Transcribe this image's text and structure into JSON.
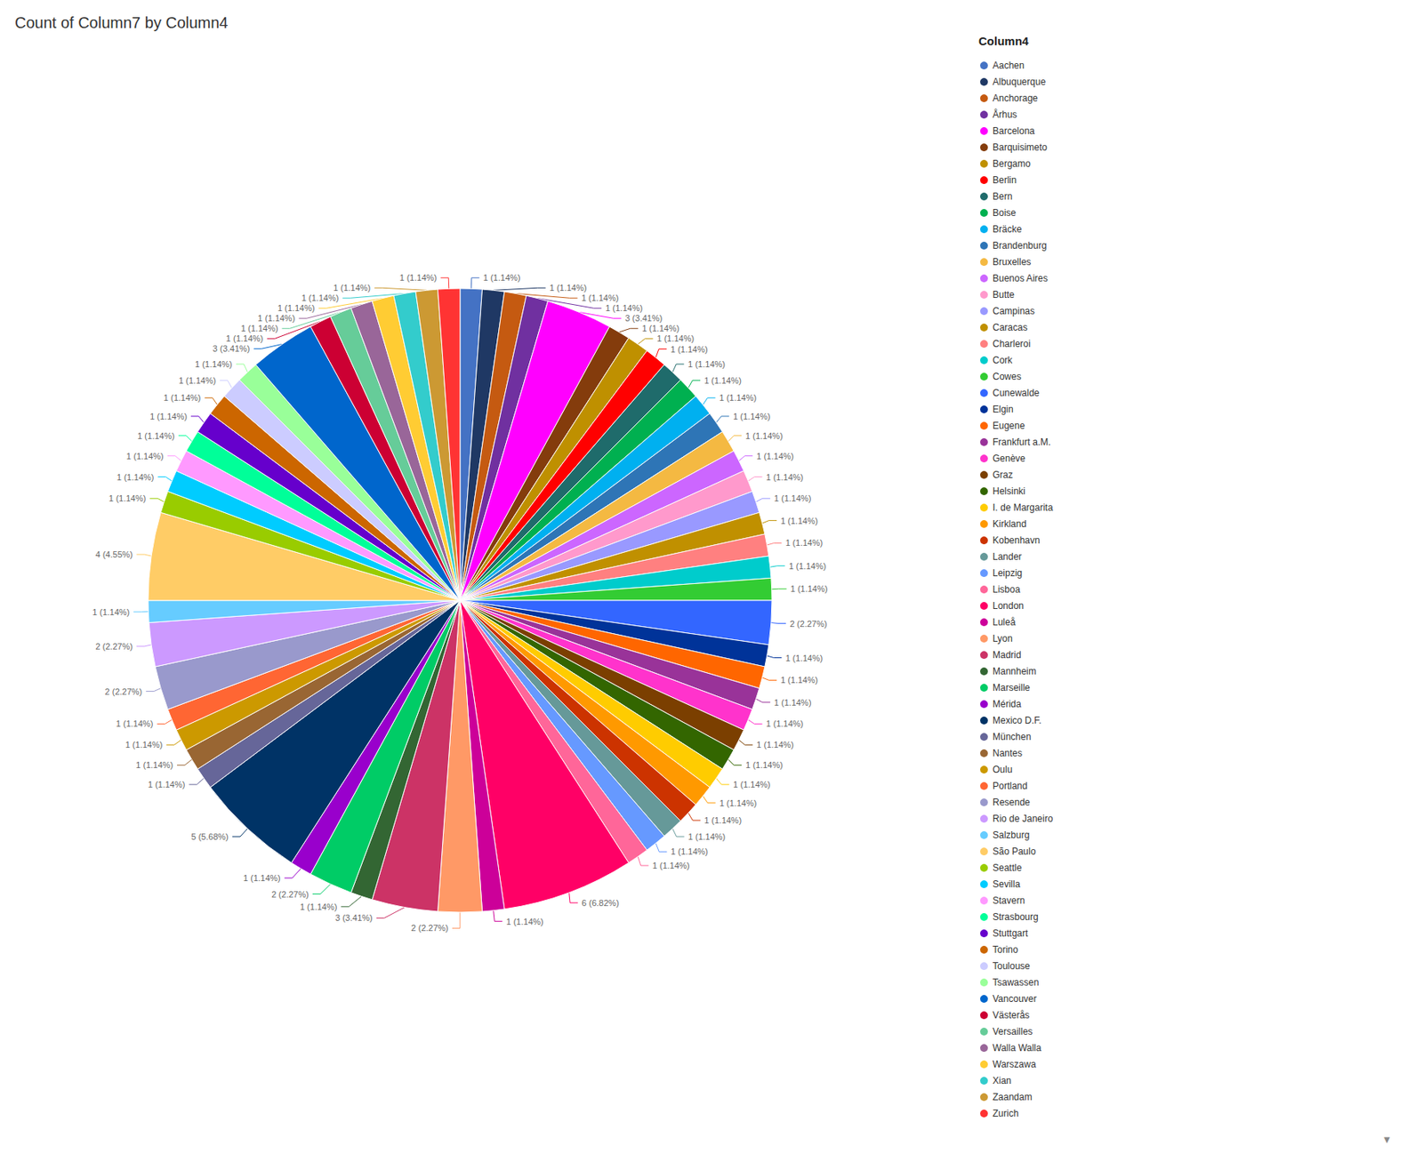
{
  "chart_data": {
    "type": "pie",
    "title": "Count of Column7 by Column4",
    "legend_title": "Column4",
    "categories": [
      "Aachen",
      "Albuquerque",
      "Anchorage",
      "Århus",
      "Barcelona",
      "Barquisimeto",
      "Bergamo",
      "Berlin",
      "Bern",
      "Boise",
      "Bräcke",
      "Brandenburg",
      "Bruxelles",
      "Buenos Aires",
      "Butte",
      "Campinas",
      "Caracas",
      "Charleroi",
      "Cork",
      "Cowes",
      "Cunewalde",
      "Elgin",
      "Eugene",
      "Frankfurt a.M.",
      "Genève",
      "Graz",
      "Helsinki",
      "I. de Margarita",
      "Kirkland",
      "Kobenhavn",
      "Lander",
      "Leipzig",
      "Lisboa",
      "London",
      "Luleå",
      "Lyon",
      "Madrid",
      "Mannheim",
      "Marseille",
      "Mérida",
      "Mexico D.F.",
      "München",
      "Nantes",
      "Oulu",
      "Portland",
      "Resende",
      "Rio de Janeiro",
      "Salzburg",
      "São Paulo",
      "Seattle",
      "Sevilla",
      "Stavern",
      "Strasbourg",
      "Stuttgart",
      "Torino",
      "Toulouse",
      "Tsawassen",
      "Vancouver",
      "Västerås",
      "Versailles",
      "Walla Walla",
      "Warszawa",
      "Xian",
      "Zaandam",
      "Zurich"
    ],
    "values": [
      1,
      1,
      1,
      1,
      3,
      1,
      1,
      1,
      1,
      1,
      1,
      1,
      1,
      1,
      1,
      1,
      1,
      1,
      1,
      1,
      2,
      1,
      1,
      1,
      1,
      1,
      1,
      1,
      1,
      1,
      1,
      1,
      1,
      6,
      1,
      2,
      3,
      1,
      2,
      1,
      5,
      1,
      1,
      1,
      1,
      2,
      2,
      1,
      4,
      1,
      1,
      1,
      1,
      1,
      1,
      1,
      1,
      3,
      1,
      1,
      1,
      1,
      1,
      1,
      1
    ],
    "value_labels": [
      "1 (1.14%)",
      "1 (1.14%)",
      "1 (1.14%)",
      "1 (1.14%)",
      "3 (3.41%)",
      "1 (1.14%)",
      "1 (1.14%)",
      "1 (1.14%)",
      "1 (1.14%)",
      "1 (1.14%)",
      "1 (1.14%)",
      "1 (1.14%)",
      "1 (1.14%)",
      "1 (1.14%)",
      "1 (1.14%)",
      "1 (1.14%)",
      "1 (1.14%)",
      "1 (1.14%)",
      "1 (1.14%)",
      "1 (1.14%)",
      "2 (2.27%)",
      "1 (1.14%)",
      "1 (1.14%)",
      "1 (1.14%)",
      "1 (1.14%)",
      "1 (1.14%)",
      "1 (1.14%)",
      "1 (1.14%)",
      "1 (1.14%)",
      "1 (1.14%)",
      "1 (1.14%)",
      "1 (1.14%)",
      "1 (1.14%)",
      "6 (6.82%)",
      "1 (1.14%)",
      "2 (2.27%)",
      "3 (3.41%)",
      "1 (1.14%)",
      "2 (2.27%)",
      "1 (1.14%)",
      "5 (5.68%)",
      "1 (1.14%)",
      "1 (1.14%)",
      "1 (1.14%)",
      "1 (1.14%)",
      "2 (2.27%)",
      "2 (2.27%)",
      "1 (1.14%)",
      "4 (4.55%)",
      "1 (1.14%)",
      "1 (1.14%)",
      "1 (1.14%)",
      "1 (1.14%)",
      "1 (1.14%)",
      "1 (1.14%)",
      "1 (1.14%)",
      "1 (1.14%)",
      "3 (3.41%)",
      "1 (1.14%)",
      "1 (1.14%)",
      "1 (1.14%)",
      "1 (1.14%)",
      "1 (1.14%)",
      "1 (1.14%)",
      "1 (1.14%)"
    ],
    "colors": [
      "#4472C4",
      "#1F3864",
      "#C55A11",
      "#7030A0",
      "#FF00FF",
      "#843C0C",
      "#BF9000",
      "#FF0000",
      "#1F6B6B",
      "#00B050",
      "#00B0F0",
      "#2E75B6",
      "#F4B942",
      "#CC66FF",
      "#FF99CC",
      "#9999FF",
      "#C09000",
      "#FF8080",
      "#00CCCC",
      "#33CC33",
      "#3366FF",
      "#003399",
      "#FF6600",
      "#993399",
      "#FF33CC",
      "#7B3F00",
      "#336600",
      "#FFCC00",
      "#FF9900",
      "#CC3300",
      "#669999",
      "#6699FF",
      "#FF6699",
      "#FF0066",
      "#CC0099",
      "#FF9966",
      "#CC3366",
      "#336633",
      "#00CC66",
      "#9900CC",
      "#003366",
      "#666699",
      "#996633",
      "#CC9900",
      "#FF6633",
      "#9999CC",
      "#CC99FF",
      "#66CCFF",
      "#FFCC66",
      "#99CC00",
      "#00CCFF",
      "#FF99FF",
      "#00FF99",
      "#6600CC",
      "#CC6600",
      "#CCCCFF",
      "#99FF99",
      "#0066CC",
      "#CC0033",
      "#66CC99",
      "#996699",
      "#FFCC33",
      "#33CCCC",
      "#CC9933",
      "#FF3333"
    ],
    "data_labels": true,
    "legend": "right",
    "annotations": [
      "▼"
    ]
  }
}
